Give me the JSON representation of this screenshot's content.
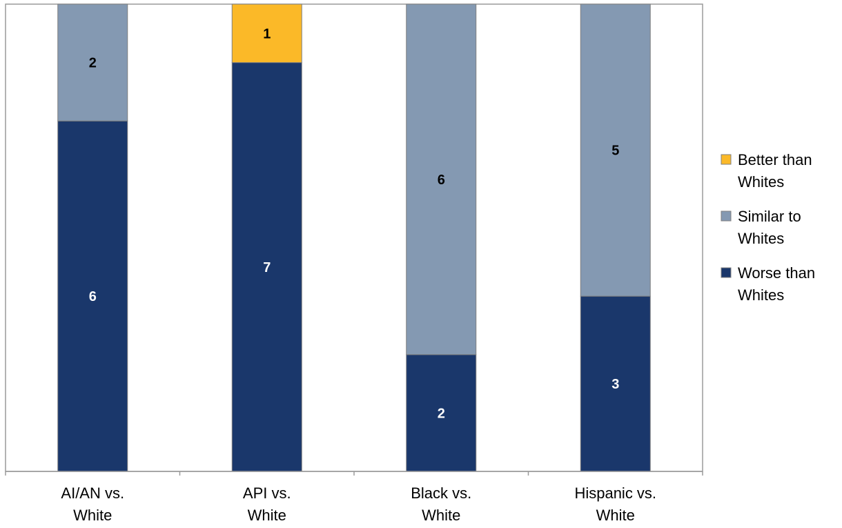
{
  "chart_data": {
    "type": "bar",
    "stacked": true,
    "categories": [
      [
        "AI/AN vs.",
        "White"
      ],
      [
        "API vs.",
        "White"
      ],
      [
        "Black vs.",
        "White"
      ],
      [
        "Hispanic vs.",
        "White"
      ]
    ],
    "series": [
      {
        "name": "Worse than Whites",
        "legend_lines": [
          "Worse than",
          "Whites"
        ],
        "color": "#1a376b",
        "label_color": "#ffffff",
        "values": [
          6,
          7,
          2,
          3
        ]
      },
      {
        "name": "Similar to Whites",
        "legend_lines": [
          "Similar to",
          "Whites"
        ],
        "color": "#8499b2",
        "label_color": "#000000",
        "values": [
          2,
          0,
          6,
          5
        ]
      },
      {
        "name": "Better than Whites",
        "legend_lines": [
          "Better than",
          "Whites"
        ],
        "color": "#fbb928",
        "label_color": "#000000",
        "values": [
          0,
          1,
          0,
          0
        ]
      }
    ],
    "ylim": [
      0,
      8
    ],
    "grid": false,
    "legend_position": "right",
    "legend_order": [
      2,
      1,
      0
    ]
  }
}
